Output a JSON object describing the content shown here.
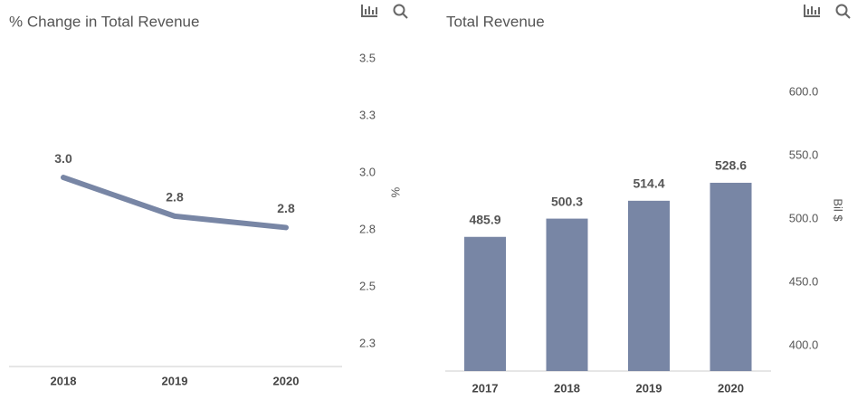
{
  "chart_data": [
    {
      "type": "line",
      "title": "% Change in Total Revenue",
      "y_label": "%",
      "categories": [
        "2018",
        "2019",
        "2020"
      ],
      "values": [
        2.98,
        2.81,
        2.76
      ],
      "value_labels": [
        "3.0",
        "2.8",
        "2.8"
      ],
      "color": "#7886a5",
      "ylim": [
        2.15,
        3.6
      ],
      "yticks": [
        {
          "value": 3.5,
          "label": "3.5"
        },
        {
          "value": 3.25,
          "label": "3.3"
        },
        {
          "value": 3.0,
          "label": "3.0"
        },
        {
          "value": 2.75,
          "label": "2.8"
        },
        {
          "value": 2.5,
          "label": "2.5"
        },
        {
          "value": 2.25,
          "label": "2.3"
        }
      ]
    },
    {
      "type": "bar",
      "title": "Total Revenue",
      "y_label": "Bil $",
      "categories": [
        "2017",
        "2018",
        "2019",
        "2020"
      ],
      "values": [
        485.9,
        500.3,
        514.4,
        528.6
      ],
      "color": "#7886a5",
      "ylim": [
        380,
        620
      ],
      "yticks": [
        {
          "value": 600,
          "label": "600.0"
        },
        {
          "value": 550,
          "label": "550.0"
        },
        {
          "value": 500,
          "label": "500.0"
        },
        {
          "value": 450,
          "label": "450.0"
        },
        {
          "value": 400,
          "label": "400.0"
        }
      ]
    }
  ]
}
